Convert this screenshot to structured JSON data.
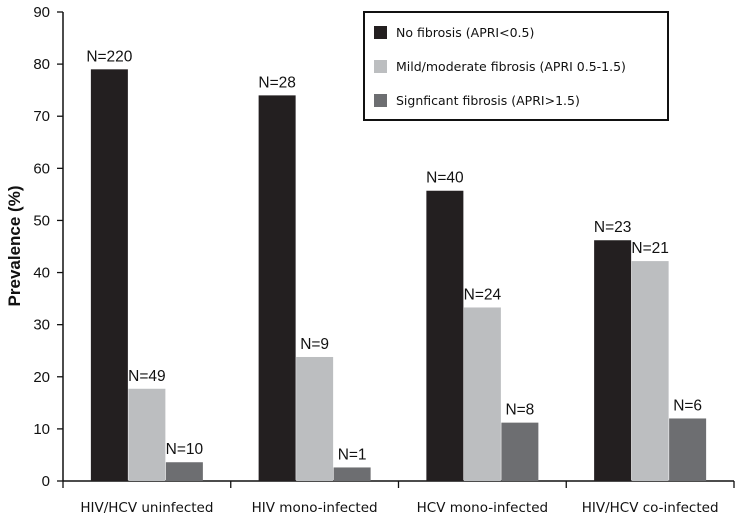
{
  "chart_data": {
    "type": "bar",
    "categories": [
      "HIV/HCV uninfected",
      "HIV mono-infected",
      "HCV mono-infected",
      "HIV/HCV co-infected"
    ],
    "ylabel": "Prevalence (%)",
    "ylim": [
      0,
      90
    ],
    "yticks": [
      0,
      10,
      20,
      30,
      40,
      50,
      60,
      70,
      80,
      90
    ],
    "grid": false,
    "legend_position": "top-right",
    "series": [
      {
        "name": "No fibrosis (APRI<0.5)",
        "color": "#231f20",
        "values": [
          79,
          74,
          55.7,
          46.2
        ],
        "labels": [
          "N=220",
          "N=28",
          "N=40",
          "N=23"
        ]
      },
      {
        "name": "Mild/moderate fibrosis (APRI 0.5-1.5)",
        "color": "#bcbec0",
        "values": [
          17.7,
          23.8,
          33.3,
          42.2
        ],
        "labels": [
          "N=49",
          "N=9",
          "N=24",
          "N=21"
        ]
      },
      {
        "name": "Signficant fibrosis (APRI>1.5)",
        "color": "#6d6e71",
        "values": [
          3.6,
          2.6,
          11.2,
          12
        ],
        "labels": [
          "N=10",
          "N=1",
          "N=8",
          "N=6"
        ]
      }
    ]
  }
}
